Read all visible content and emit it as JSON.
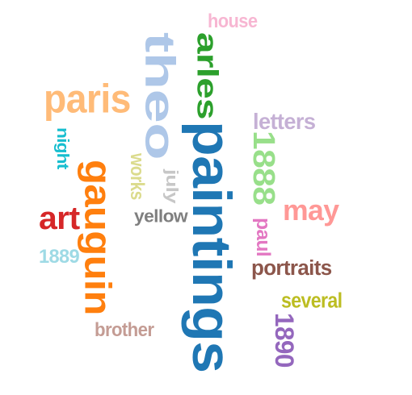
{
  "words": [
    {
      "text": "paintings",
      "color": "#1f77b4",
      "orientation": "vertical-down"
    },
    {
      "text": "theo",
      "color": "#aec7e8",
      "orientation": "vertical-down"
    },
    {
      "text": "gauguin",
      "color": "#ff7f0e",
      "orientation": "vertical-down"
    },
    {
      "text": "arles",
      "color": "#2ca02c",
      "orientation": "vertical-down"
    },
    {
      "text": "paris",
      "color": "#ffbb78",
      "orientation": "horizontal"
    },
    {
      "text": "1888",
      "color": "#98df8a",
      "orientation": "vertical-down"
    },
    {
      "text": "art",
      "color": "#d62728",
      "orientation": "horizontal"
    },
    {
      "text": "may",
      "color": "#ff9896",
      "orientation": "horizontal"
    },
    {
      "text": "1890",
      "color": "#9467bd",
      "orientation": "vertical-down"
    },
    {
      "text": "letters",
      "color": "#c5b0d5",
      "orientation": "horizontal"
    },
    {
      "text": "portraits",
      "color": "#8c564b",
      "orientation": "horizontal"
    },
    {
      "text": "brother",
      "color": "#c49c94",
      "orientation": "horizontal"
    },
    {
      "text": "paul",
      "color": "#e377c2",
      "orientation": "vertical-down"
    },
    {
      "text": "house",
      "color": "#f7b6d2",
      "orientation": "horizontal"
    },
    {
      "text": "yellow",
      "color": "#7f7f7f",
      "orientation": "horizontal"
    },
    {
      "text": "july",
      "color": "#c7c7c7",
      "orientation": "vertical-down"
    },
    {
      "text": "several",
      "color": "#bcbd22",
      "orientation": "horizontal"
    },
    {
      "text": "works",
      "color": "#dbdb8d",
      "orientation": "vertical-down"
    },
    {
      "text": "night",
      "color": "#17becf",
      "orientation": "vertical-down"
    },
    {
      "text": "1889",
      "color": "#9edae5",
      "orientation": "horizontal"
    }
  ]
}
